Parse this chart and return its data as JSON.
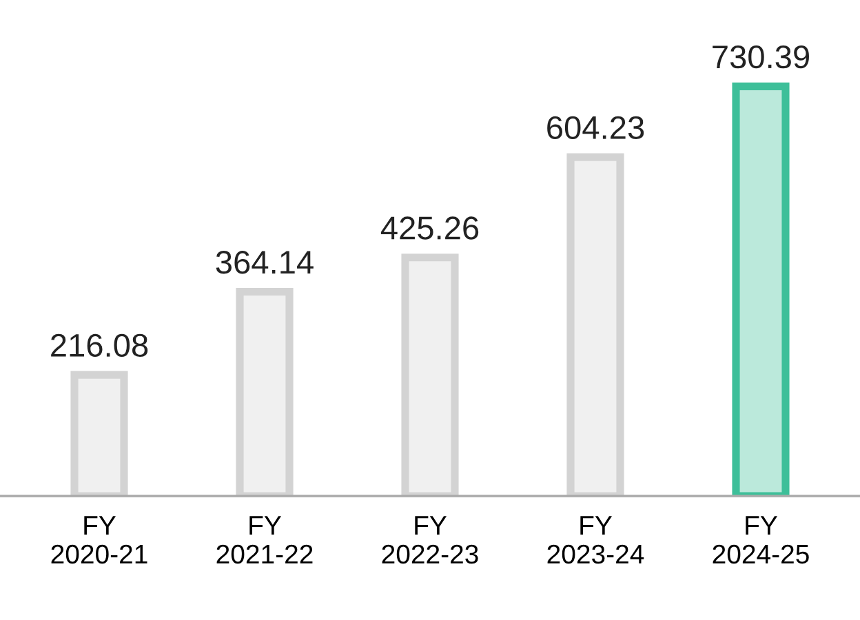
{
  "chart_data": {
    "type": "bar",
    "categories": [
      "FY\n2020-21",
      "FY\n2021-22",
      "FY\n2022-23",
      "FY\n2023-24",
      "FY\n2024-25"
    ],
    "values": [
      216.08,
      364.14,
      425.26,
      604.23,
      730.39
    ],
    "colors": [
      "#d3d3d3",
      "#d3d3d3",
      "#d3d3d3",
      "#d3d3d3",
      "#3dbf99"
    ],
    "data_labels": true,
    "grid": false,
    "legend": false
  }
}
